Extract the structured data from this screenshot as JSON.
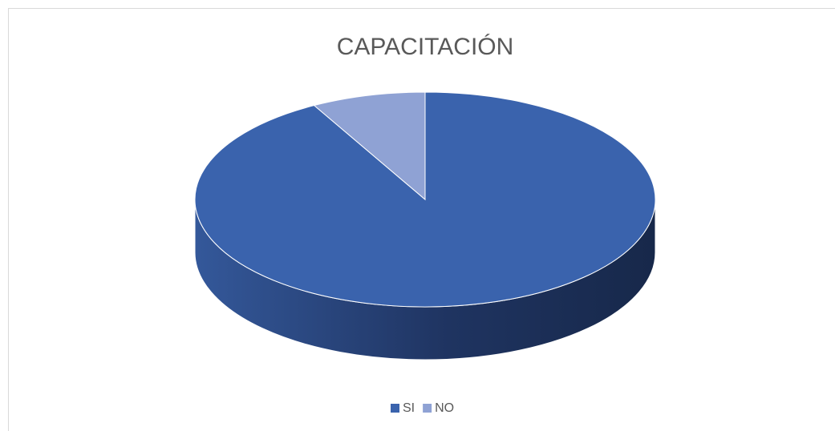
{
  "chart_data": {
    "type": "pie3d",
    "title": "CAPACITACIÓN",
    "categories": [
      "SI",
      "NO"
    ],
    "values": [
      92,
      8
    ],
    "colors": [
      "#3a63ad",
      "#8fa2d4"
    ],
    "legend": "bottom"
  }
}
